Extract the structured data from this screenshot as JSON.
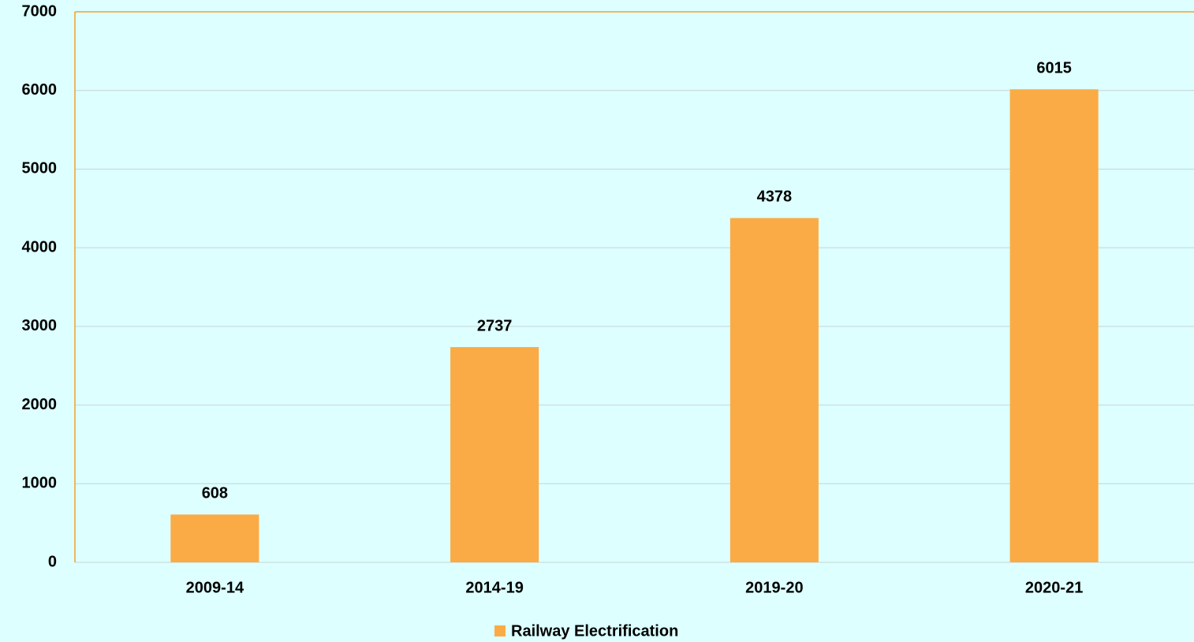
{
  "chart_data": {
    "type": "bar",
    "categories": [
      "2009-14",
      "2014-19",
      "2019-20",
      "2020-21"
    ],
    "series": [
      {
        "name": "Railway Electrification",
        "color": "#fbab45",
        "values": [
          608,
          2737,
          4378,
          6015
        ]
      }
    ],
    "ylim": [
      0,
      7000
    ],
    "yticks": [
      0,
      1000,
      2000,
      3000,
      4000,
      5000,
      6000,
      7000
    ],
    "grid": true,
    "legend": "bottom"
  }
}
